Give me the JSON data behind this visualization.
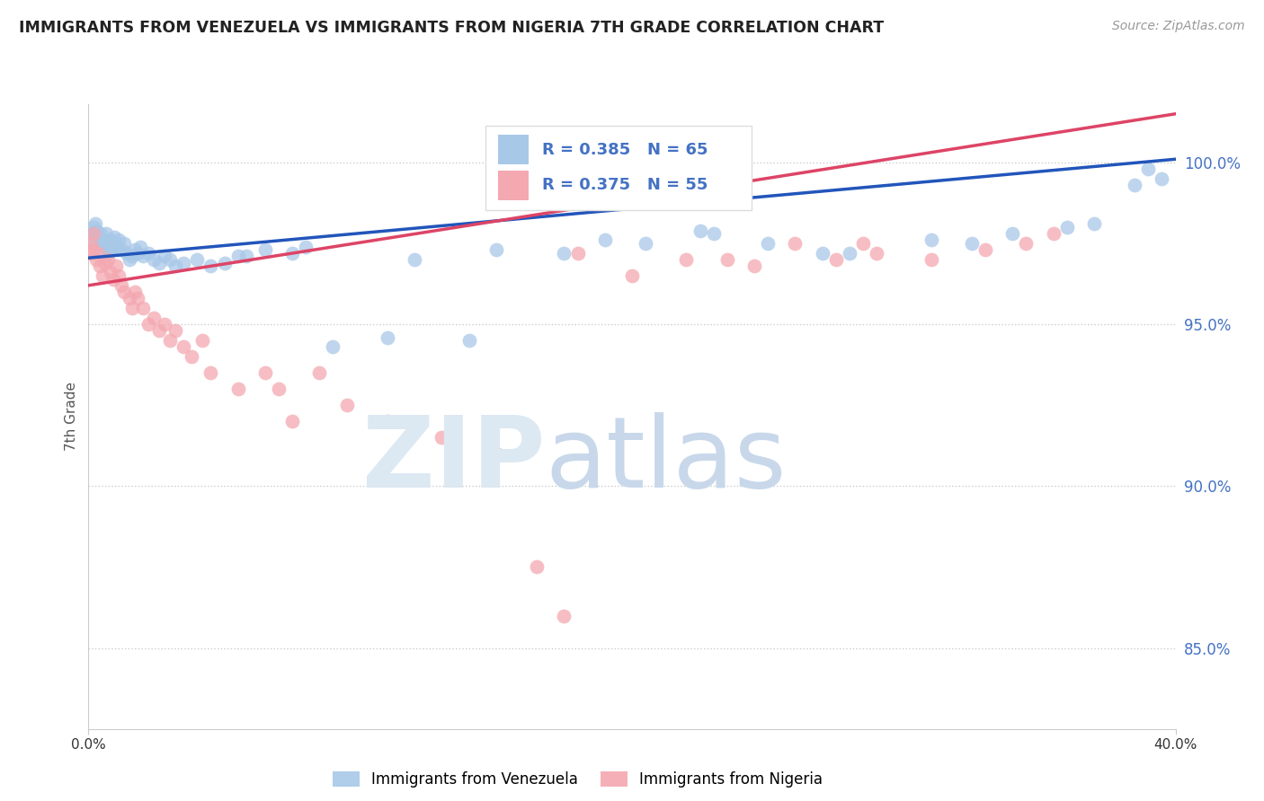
{
  "title": "IMMIGRANTS FROM VENEZUELA VS IMMIGRANTS FROM NIGERIA 7TH GRADE CORRELATION CHART",
  "source": "Source: ZipAtlas.com",
  "ylabel": "7th Grade",
  "yticks": [
    85.0,
    90.0,
    95.0,
    100.0
  ],
  "xlim": [
    0.0,
    40.0
  ],
  "ylim": [
    82.5,
    101.8
  ],
  "legend_venezuela": "Immigrants from Venezuela",
  "legend_nigeria": "Immigrants from Nigeria",
  "R_venezuela": 0.385,
  "N_venezuela": 65,
  "R_nigeria": 0.375,
  "N_nigeria": 55,
  "color_venezuela": "#a8c8e8",
  "color_nigeria": "#f4a8b0",
  "trendline_venezuela": "#2255bb",
  "trendline_nigeria": "#dd4466",
  "ven_trend_x0": 0.0,
  "ven_trend_y0": 97.05,
  "ven_trend_x1": 40.0,
  "ven_trend_y1": 100.1,
  "nig_trend_x0": 0.0,
  "nig_trend_y0": 96.2,
  "nig_trend_x1": 40.0,
  "nig_trend_y1": 101.5,
  "venezuela_x": [
    0.1,
    0.15,
    0.2,
    0.25,
    0.3,
    0.35,
    0.4,
    0.45,
    0.5,
    0.55,
    0.6,
    0.65,
    0.7,
    0.75,
    0.8,
    0.85,
    0.9,
    0.95,
    1.0,
    1.1,
    1.2,
    1.3,
    1.4,
    1.5,
    1.6,
    1.7,
    1.8,
    1.9,
    2.0,
    2.2,
    2.4,
    2.6,
    2.8,
    3.0,
    3.2,
    3.5,
    4.0,
    4.5,
    5.0,
    5.5,
    6.5,
    7.5,
    9.0,
    11.0,
    14.0,
    17.5,
    20.5,
    23.0,
    25.0,
    28.0,
    31.0,
    34.0,
    36.0,
    38.5,
    39.5,
    5.8,
    8.0,
    12.0,
    15.0,
    19.0,
    22.5,
    27.0,
    32.5,
    37.0,
    39.0
  ],
  "venezuela_y": [
    97.6,
    97.8,
    98.0,
    98.1,
    97.9,
    97.7,
    97.5,
    97.8,
    97.6,
    97.4,
    97.5,
    97.8,
    97.2,
    97.4,
    97.6,
    97.3,
    97.5,
    97.7,
    97.4,
    97.6,
    97.3,
    97.5,
    97.2,
    97.0,
    97.1,
    97.3,
    97.2,
    97.4,
    97.1,
    97.2,
    97.0,
    96.9,
    97.1,
    97.0,
    96.8,
    96.9,
    97.0,
    96.8,
    96.9,
    97.1,
    97.3,
    97.2,
    94.3,
    94.6,
    94.5,
    97.2,
    97.5,
    97.8,
    97.5,
    97.2,
    97.6,
    97.8,
    98.0,
    99.3,
    99.5,
    97.1,
    97.4,
    97.0,
    97.3,
    97.6,
    97.9,
    97.2,
    97.5,
    98.1,
    99.8
  ],
  "nigeria_x": [
    0.05,
    0.1,
    0.15,
    0.2,
    0.3,
    0.35,
    0.4,
    0.5,
    0.6,
    0.7,
    0.8,
    0.9,
    1.0,
    1.1,
    1.2,
    1.3,
    1.5,
    1.6,
    1.7,
    1.8,
    2.0,
    2.2,
    2.4,
    2.6,
    2.8,
    3.0,
    3.2,
    3.5,
    3.8,
    4.5,
    5.5,
    6.5,
    7.0,
    7.5,
    8.5,
    9.5,
    11.0,
    13.0,
    15.0,
    16.5,
    18.0,
    20.0,
    22.0,
    24.5,
    26.0,
    27.5,
    29.0,
    31.0,
    33.0,
    34.5,
    35.5,
    4.2,
    17.5,
    23.5,
    28.5
  ],
  "nigeria_y": [
    97.2,
    97.5,
    97.3,
    97.8,
    97.0,
    97.2,
    96.8,
    96.5,
    96.9,
    97.0,
    96.6,
    96.4,
    96.8,
    96.5,
    96.2,
    96.0,
    95.8,
    95.5,
    96.0,
    95.8,
    95.5,
    95.0,
    95.2,
    94.8,
    95.0,
    94.5,
    94.8,
    94.3,
    94.0,
    93.5,
    93.0,
    93.5,
    93.0,
    92.0,
    93.5,
    92.5,
    92.0,
    91.5,
    91.0,
    87.5,
    97.2,
    96.5,
    97.0,
    96.8,
    97.5,
    97.0,
    97.2,
    97.0,
    97.3,
    97.5,
    97.8,
    94.5,
    86.0,
    97.0,
    97.5
  ]
}
